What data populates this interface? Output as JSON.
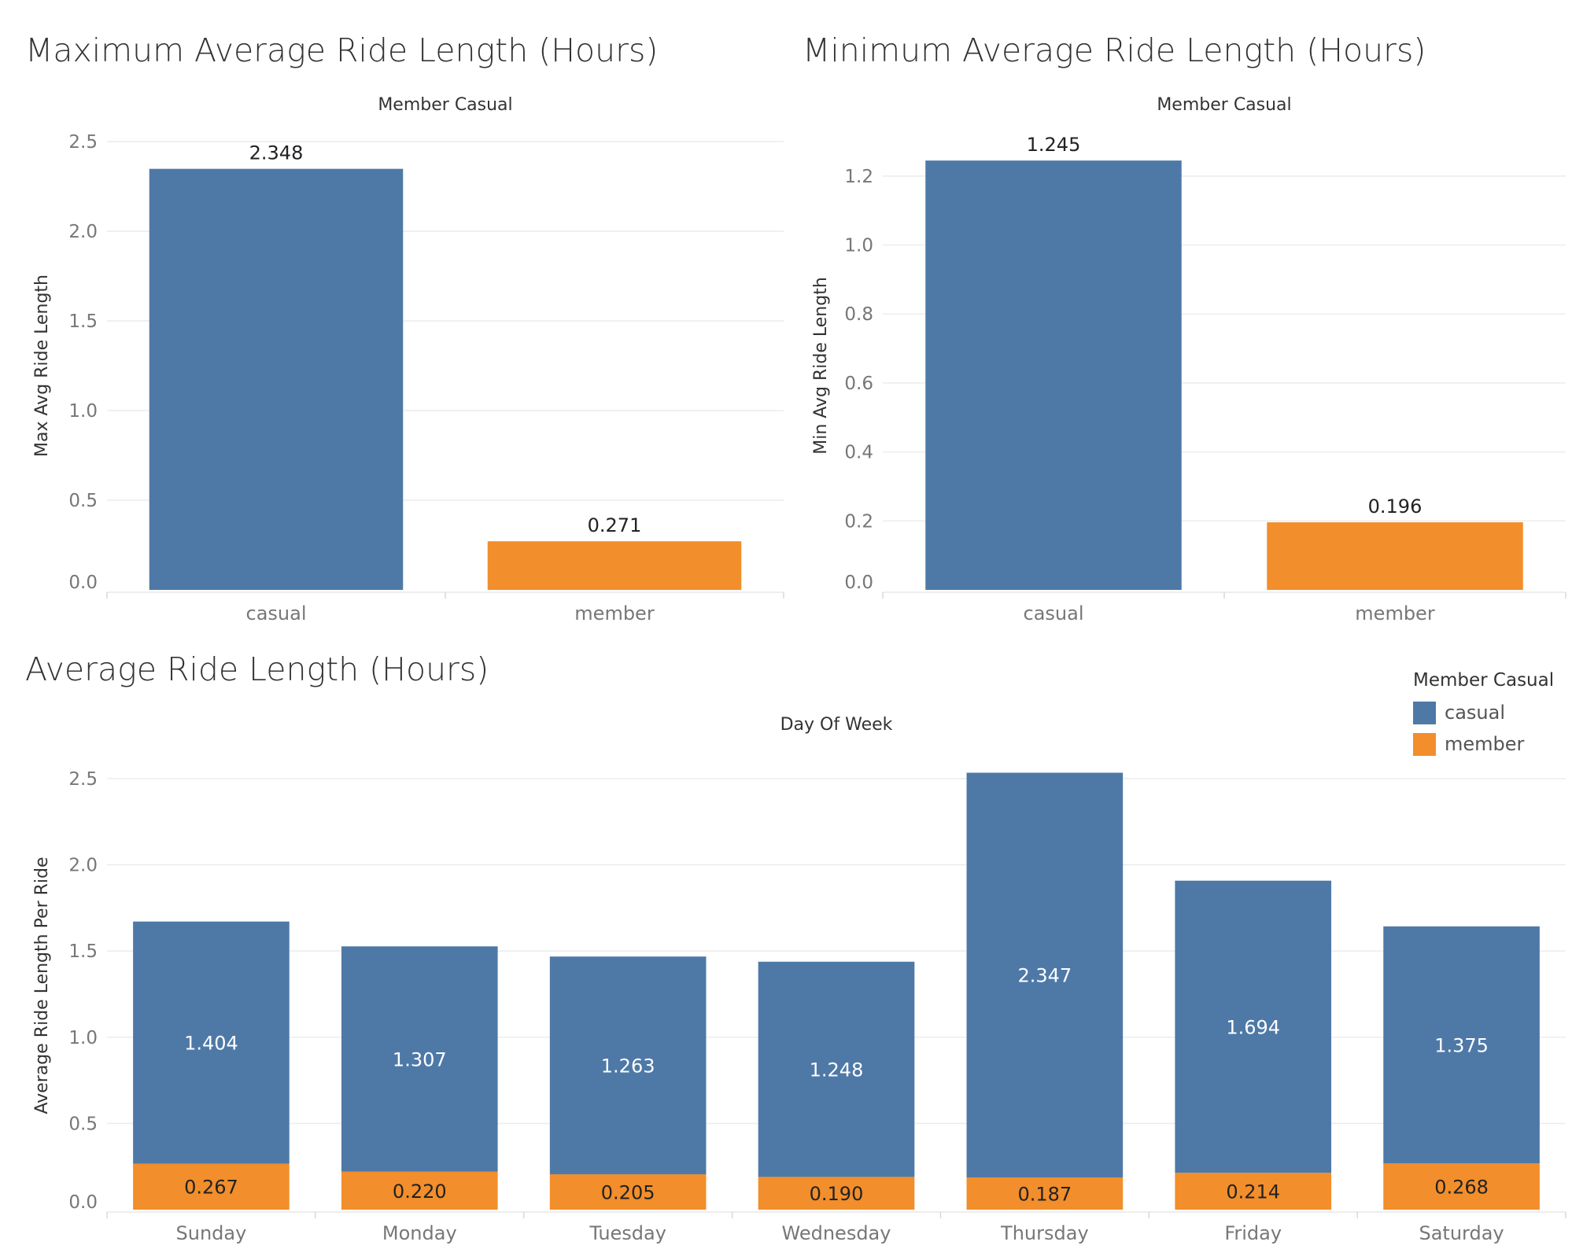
{
  "titles": {
    "max": "Maximum Average Ride Length (Hours)",
    "min": "Minimum Average Ride Length (Hours)",
    "avg": "Average Ride Length (Hours)"
  },
  "colors": {
    "casual": "#4e79a7",
    "member": "#f28e2b"
  },
  "legend": {
    "title": "Member Casual",
    "items": [
      {
        "label": "casual",
        "color": "#4e79a7"
      },
      {
        "label": "member",
        "color": "#f28e2b"
      }
    ]
  },
  "chart_data": [
    {
      "id": "max",
      "type": "bar",
      "header": "Member Casual",
      "ylabel": "Max Avg Ride Length",
      "categories": [
        "casual",
        "member"
      ],
      "values": [
        2.348,
        0.271
      ],
      "labels": [
        "2.348",
        "0.271"
      ],
      "colors": [
        "#4e79a7",
        "#f28e2b"
      ],
      "ylim": [
        0,
        2.5
      ],
      "yticks": [
        0,
        0.5,
        1.0,
        1.5,
        2.0,
        2.5
      ],
      "ytick_labels": [
        "0.0",
        "0.5",
        "1.0",
        "1.5",
        "2.0",
        "2.5"
      ],
      "grid": true
    },
    {
      "id": "min",
      "type": "bar",
      "header": "Member Casual",
      "ylabel": "Min Avg Ride Length",
      "categories": [
        "casual",
        "member"
      ],
      "values": [
        1.245,
        0.196
      ],
      "labels": [
        "1.245",
        "0.196"
      ],
      "colors": [
        "#4e79a7",
        "#f28e2b"
      ],
      "ylim": [
        0,
        1.3
      ],
      "yticks": [
        0,
        0.2,
        0.4,
        0.6,
        0.8,
        1.0,
        1.2
      ],
      "ytick_labels": [
        "0.0",
        "0.2",
        "0.4",
        "0.6",
        "0.8",
        "1.0",
        "1.2"
      ],
      "grid": true
    },
    {
      "id": "avg",
      "type": "bar",
      "stacked": true,
      "header": "Day Of Week",
      "ylabel": "Average Ride Length Per Ride",
      "categories": [
        "Sunday",
        "Monday",
        "Tuesday",
        "Wednesday",
        "Thursday",
        "Friday",
        "Saturday"
      ],
      "series": [
        {
          "name": "member",
          "color": "#f28e2b",
          "values": [
            0.267,
            0.22,
            0.205,
            0.19,
            0.187,
            0.214,
            0.268
          ],
          "labels": [
            "0.267",
            "0.220",
            "0.205",
            "0.190",
            "0.187",
            "0.214",
            "0.268"
          ]
        },
        {
          "name": "casual",
          "color": "#4e79a7",
          "values": [
            1.404,
            1.307,
            1.263,
            1.248,
            2.347,
            1.694,
            1.375
          ],
          "labels": [
            "1.404",
            "1.307",
            "1.263",
            "1.248",
            "2.347",
            "1.694",
            "1.375"
          ]
        }
      ],
      "ylim": [
        0,
        2.6
      ],
      "yticks": [
        0,
        0.5,
        1.0,
        1.5,
        2.0,
        2.5
      ],
      "ytick_labels": [
        "0.0",
        "0.5",
        "1.0",
        "1.5",
        "2.0",
        "2.5"
      ],
      "grid": true,
      "legend_position": "top-right"
    }
  ]
}
